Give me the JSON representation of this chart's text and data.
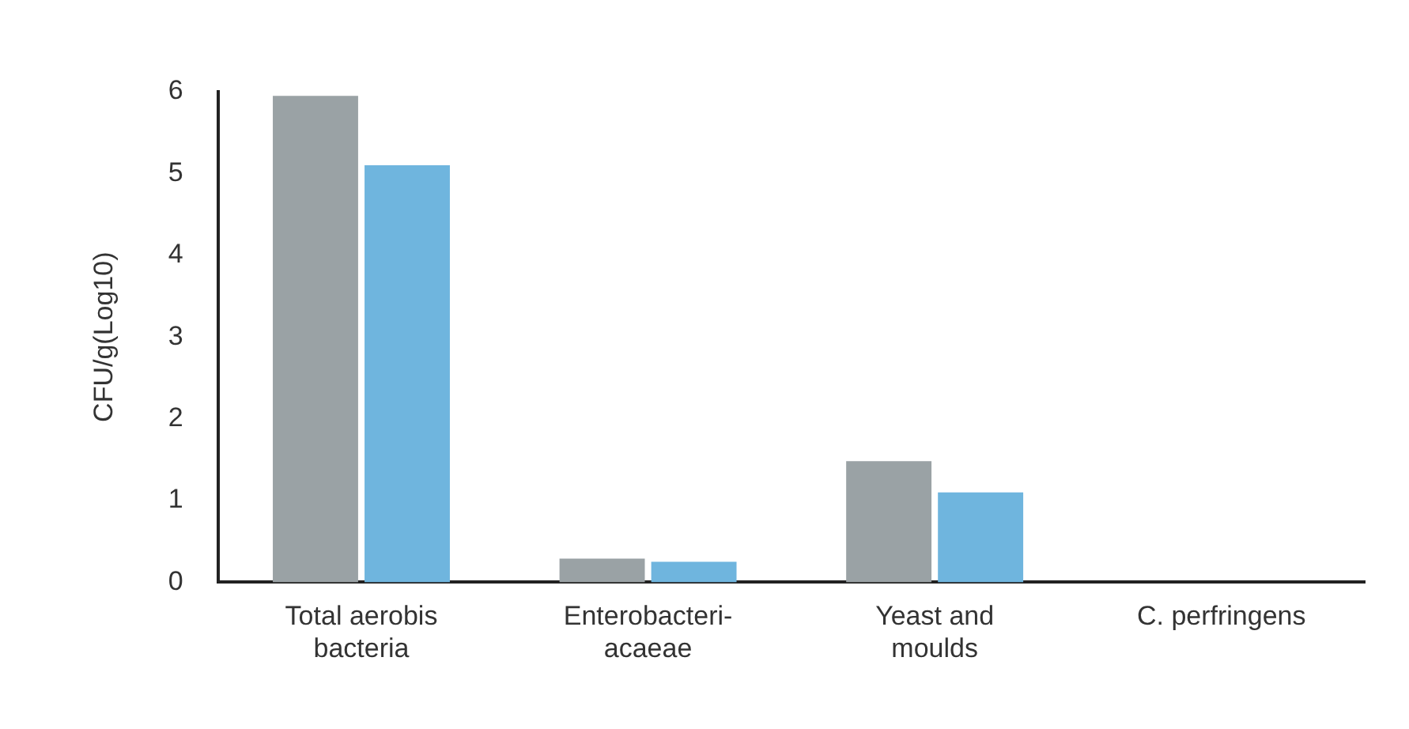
{
  "chart_data": {
    "type": "bar",
    "ylabel": "CFU/g(Log10)",
    "categories": [
      "Total aerobis bacteria",
      "Enterobacteri-acaeae",
      "Yeast and moulds",
      "C. perfringens"
    ],
    "series": [
      {
        "color": "#9aa2a5",
        "values": [
          5.95,
          0.29,
          1.48,
          0
        ]
      },
      {
        "color": "#6fb5de",
        "values": [
          5.1,
          0.25,
          1.1,
          0
        ]
      }
    ],
    "ylim": [
      0,
      6
    ],
    "yticks": [
      0,
      1,
      2,
      3,
      4,
      5,
      6
    ],
    "grid": false,
    "legend": false
  }
}
